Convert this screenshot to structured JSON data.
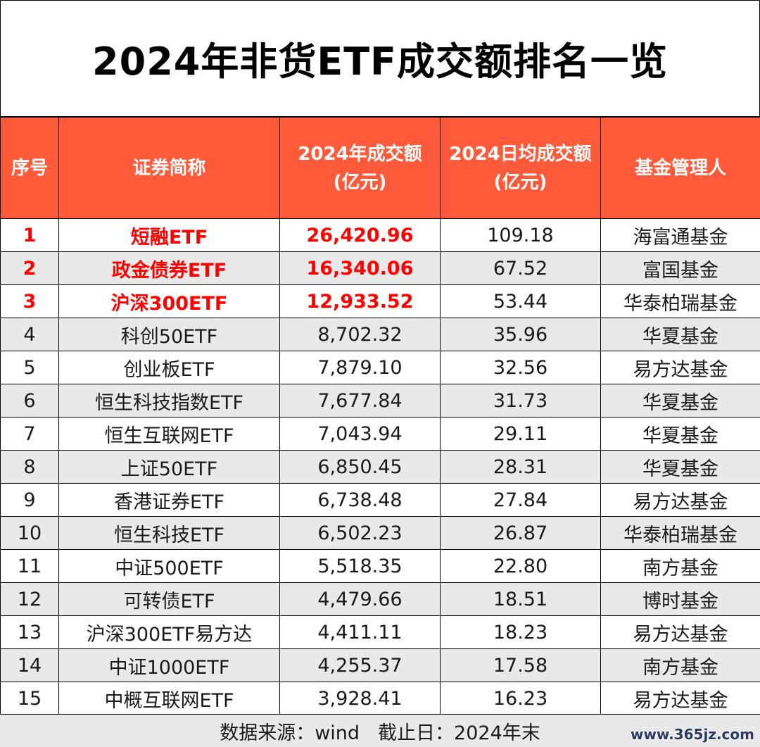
{
  "title": "2024年非货ETF成交额排名一览",
  "table": {
    "header_line1": [
      "序号",
      "证券简称",
      "2024年成交额",
      "2024日均成交额",
      "基金管理人"
    ],
    "header_line2": [
      "",
      "",
      "(亿元)",
      "(亿元)",
      ""
    ],
    "rows": [
      {
        "rank": "1",
        "name": "短融ETF",
        "turnover": "26,420.96",
        "daily": "109.18",
        "manager": "海富通基金"
      },
      {
        "rank": "2",
        "name": "政金债券ETF",
        "turnover": "16,340.06",
        "daily": "67.52",
        "manager": "富国基金"
      },
      {
        "rank": "3",
        "name": "沪深300ETF",
        "turnover": "12,933.52",
        "daily": "53.44",
        "manager": "华泰柏瑞基金"
      },
      {
        "rank": "4",
        "name": "科创50ETF",
        "turnover": "8,702.32",
        "daily": "35.96",
        "manager": "华夏基金"
      },
      {
        "rank": "5",
        "name": "创业板ETF",
        "turnover": "7,879.10",
        "daily": "32.56",
        "manager": "易方达基金"
      },
      {
        "rank": "6",
        "name": "恒生科技指数ETF",
        "turnover": "7,677.84",
        "daily": "31.73",
        "manager": "华夏基金"
      },
      {
        "rank": "7",
        "name": "恒生互联网ETF",
        "turnover": "7,043.94",
        "daily": "29.11",
        "manager": "华夏基金"
      },
      {
        "rank": "8",
        "name": "上证50ETF",
        "turnover": "6,850.45",
        "daily": "28.31",
        "manager": "华夏基金"
      },
      {
        "rank": "9",
        "name": "香港证券ETF",
        "turnover": "6,738.48",
        "daily": "27.84",
        "manager": "易方达基金"
      },
      {
        "rank": "10",
        "name": "恒生科技ETF",
        "turnover": "6,502.23",
        "daily": "26.87",
        "manager": "华泰柏瑞基金"
      },
      {
        "rank": "11",
        "name": "中证500ETF",
        "turnover": "5,518.35",
        "daily": "22.80",
        "manager": "南方基金"
      },
      {
        "rank": "12",
        "name": "可转债ETF",
        "turnover": "4,479.66",
        "daily": "18.51",
        "manager": "博时基金"
      },
      {
        "rank": "13",
        "name": "沪深300ETF易方达",
        "turnover": "4,411.11",
        "daily": "18.23",
        "manager": "易方达基金"
      },
      {
        "rank": "14",
        "name": "中证1000ETF",
        "turnover": "4,255.37",
        "daily": "17.58",
        "manager": "南方基金"
      },
      {
        "rank": "15",
        "name": "中概互联网ETF",
        "turnover": "3,928.41",
        "daily": "16.23",
        "manager": "易方达基金"
      }
    ]
  },
  "footer": {
    "source": "数据来源：wind",
    "cutoff": "截止日：2024年末"
  },
  "watermark": "www.365jz.com",
  "colors": {
    "header_bg": "#ff5b3b",
    "header_text": "#ffffff",
    "highlight_text": "#ff0000",
    "stripe_bg": "#e9e9e9"
  }
}
